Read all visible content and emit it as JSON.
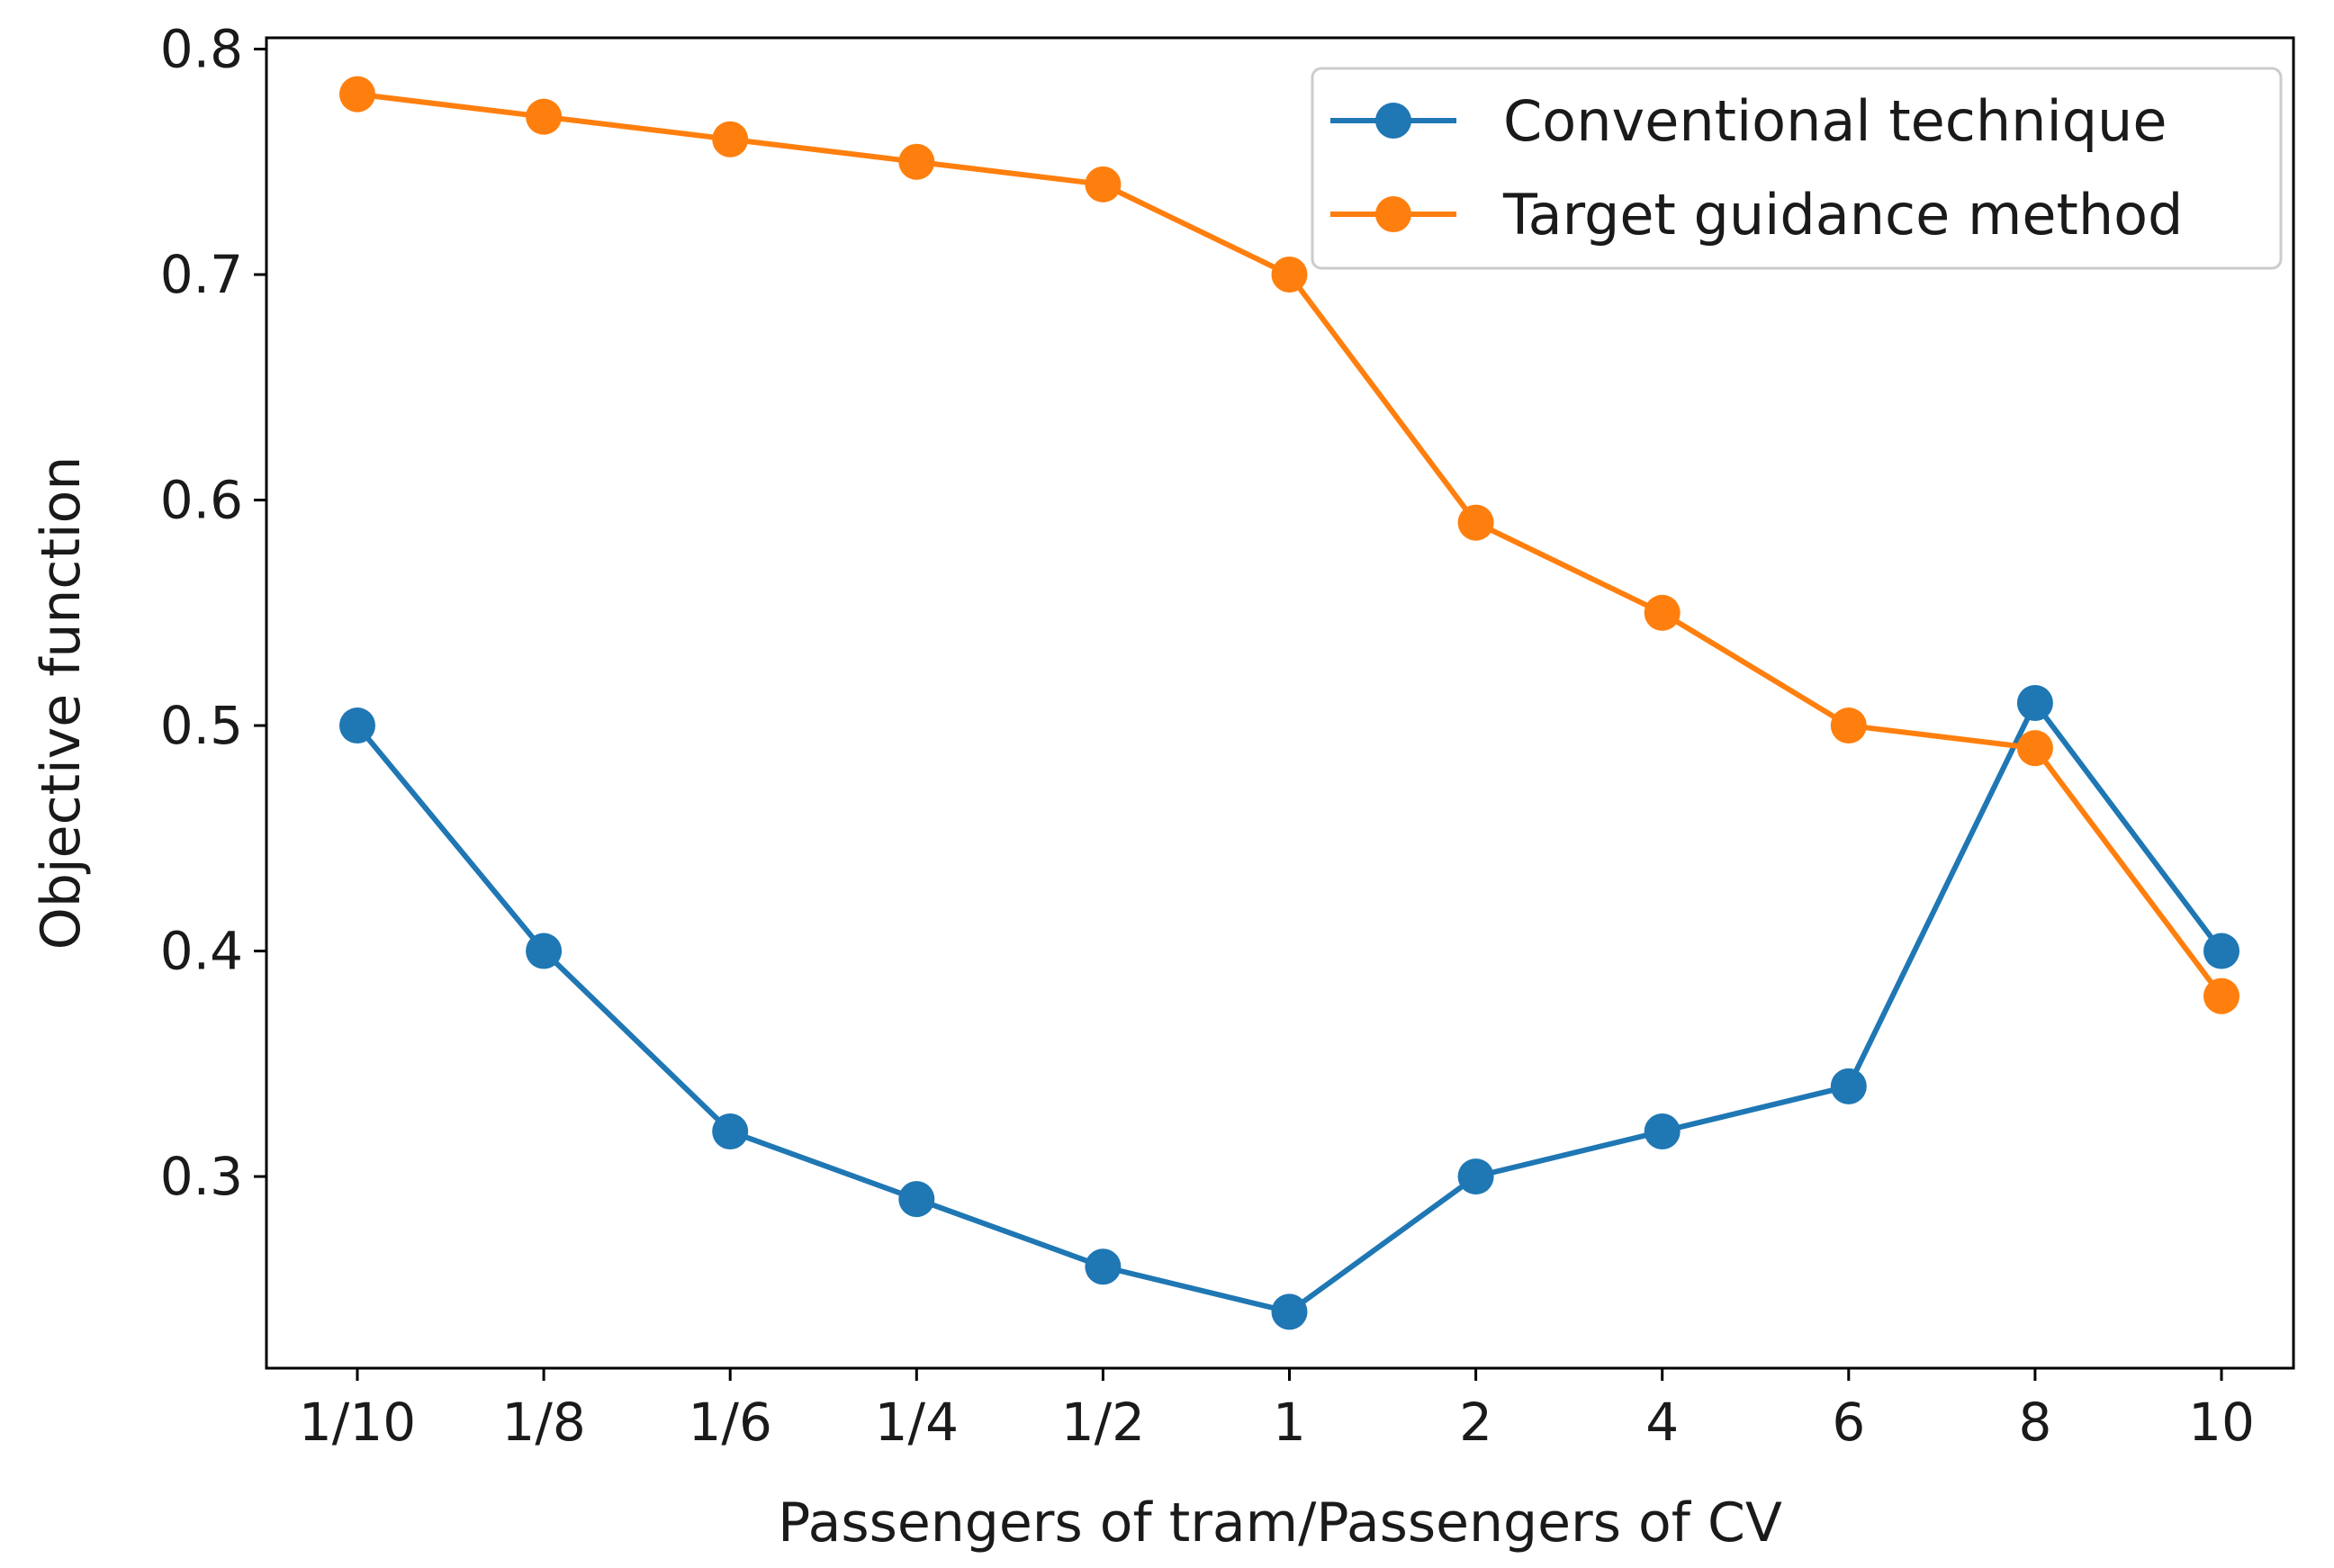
{
  "chart_data": {
    "type": "line",
    "title": "",
    "xlabel": "Passengers of tram/Passengers of CV",
    "ylabel": "Objective function",
    "categories": [
      "1/10",
      "1/8",
      "1/6",
      "1/4",
      "1/2",
      "1",
      "2",
      "4",
      "6",
      "8",
      "10"
    ],
    "ylim": [
      0.215,
      0.805
    ],
    "yticks": [
      0.3,
      0.4,
      0.5,
      0.6,
      0.7,
      0.8
    ],
    "ytick_labels": [
      "0.3",
      "0.4",
      "0.5",
      "0.6",
      "0.7",
      "0.8"
    ],
    "grid": false,
    "legend_position": "top-right",
    "series": [
      {
        "name": "Conventional technique",
        "color": "#1f77b4",
        "marker": "circle",
        "values": [
          0.5,
          0.4,
          0.32,
          0.29,
          0.26,
          0.24,
          0.3,
          0.32,
          0.34,
          0.51,
          0.4
        ]
      },
      {
        "name": "Target guidance method",
        "color": "#ff7f0e",
        "marker": "circle",
        "values": [
          0.78,
          0.77,
          0.76,
          0.75,
          0.74,
          0.7,
          0.59,
          0.55,
          0.5,
          0.49,
          0.38
        ]
      }
    ]
  }
}
